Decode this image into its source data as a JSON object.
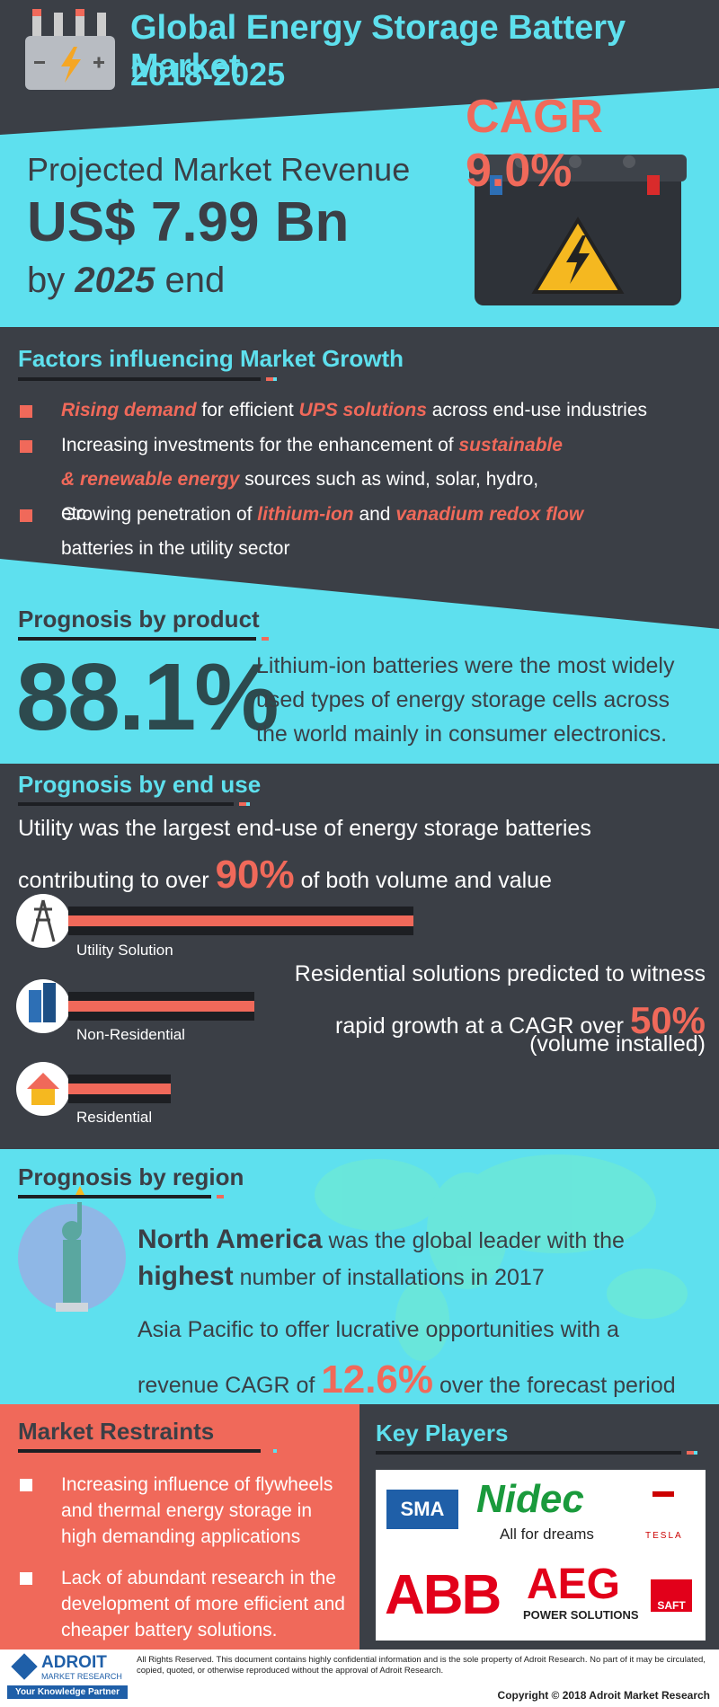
{
  "header": {
    "title": "Global Energy Storage Battery Market",
    "years": "2018-2025",
    "cagr": "CAGR 9.0%",
    "revenue_label": "Projected Market Revenue",
    "revenue": "US$ 7.99 Bn",
    "revenue_by": [
      {
        "text": "by "
      },
      {
        "text": "2025",
        "em": true
      },
      {
        "text": " end"
      }
    ]
  },
  "factors": {
    "title": "Factors influencing Market Growth",
    "items": [
      [
        {
          "text": "Rising demand",
          "em": true
        },
        {
          "text": " for efficient "
        },
        {
          "text": "UPS solutions",
          "em": true
        },
        {
          "text": " across end-use industries"
        }
      ],
      [
        {
          "text": "Increasing investments for the enhancement of "
        },
        {
          "text": "sustainable & renewable energy",
          "em": true
        },
        {
          "text": " sources such as wind, solar, hydro, etc."
        }
      ],
      [
        {
          "text": "Growing penetration of "
        },
        {
          "text": "lithium-ion",
          "em": true
        },
        {
          "text": " and "
        },
        {
          "text": "vanadium redox flow",
          "em": true
        },
        {
          "text": " batteries in the utility sector"
        }
      ]
    ]
  },
  "product": {
    "title": "Prognosis by product",
    "percent": "88.1%",
    "text": "Lithium-ion batteries were the most widely used types of energy storage cells across the world mainly in consumer electronics."
  },
  "end_use": {
    "title": "Prognosis by end use",
    "summary": [
      {
        "text": "Utility was the largest end-use of energy storage batteries contributing to over "
      },
      {
        "text": "90%",
        "em": true
      },
      {
        "text": " of both volume and value"
      }
    ],
    "segments": [
      "Utility Solution",
      "Non-Residential",
      "Residential"
    ],
    "residential_note": [
      {
        "text": "Residential solutions predicted to witness rapid growth at a CAGR over "
      },
      {
        "text": "50%",
        "em": true
      }
    ],
    "residential_sub": "(volume installed)"
  },
  "region": {
    "title": "Prognosis by region",
    "north_america": [
      {
        "text": "North America",
        "em": true
      },
      {
        "text": " was the global leader with the "
      },
      {
        "text": "highest",
        "em": true
      },
      {
        "text": " number of installations in 2017"
      }
    ],
    "asia_pacific": [
      {
        "text": "Asia Pacific to offer lucrative opportunities with a revenue CAGR of "
      },
      {
        "text": "12.6%",
        "em": true
      },
      {
        "text": " over the forecast period"
      }
    ]
  },
  "restraints": {
    "title": "Market Restraints",
    "items": [
      "Increasing influence of flywheels and thermal energy storage in high demanding applications",
      "Lack of abundant research in the development of more efficient and cheaper battery solutions."
    ]
  },
  "key_players": {
    "title": "Key Players",
    "logos": [
      "SMA",
      "Nidec",
      "All for dreams",
      "TESLA",
      "ABB",
      "AEG",
      "POWER SOLUTIONS",
      "SAFT"
    ]
  },
  "footer": {
    "brand": "ADROIT",
    "brand_sub": "MARKET RESEARCH",
    "tagline": "Your Knowledge Partner",
    "disclaimer": "All Rights Reserved. This document contains highly confidential information and is the sole property of Adroit Research. No part of it may be circulated, copied, quoted, or otherwise reproduced without the approval of Adroit Research.",
    "copyright": "Copyright © 2018 Adroit Market Research"
  }
}
